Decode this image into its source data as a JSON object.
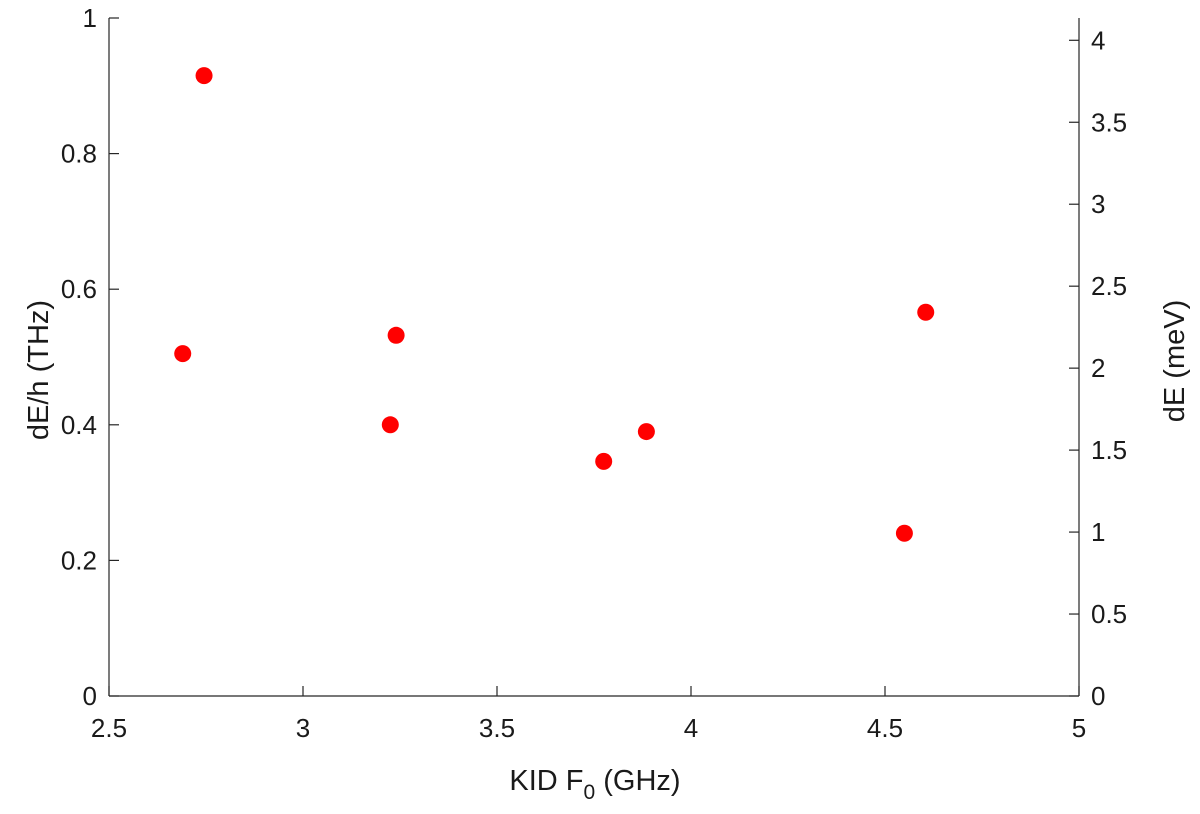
{
  "chart_data": {
    "type": "scatter",
    "title": "",
    "xlabel": "KID F",
    "xlabel_subscript": "0",
    "xlabel_unit": " (GHz)",
    "ylabel": "dE/h  (THz)",
    "y2label": "dE  (meV)",
    "xlim": [
      2.5,
      5
    ],
    "ylim": [
      0,
      1
    ],
    "y2lim": [
      0,
      4.136
    ],
    "xticks": [
      2.5,
      3,
      3.5,
      4,
      4.5,
      5
    ],
    "xtick_labels": [
      "2.5",
      "3",
      "3.5",
      "4",
      "4.5",
      "5"
    ],
    "yticks": [
      0,
      0.2,
      0.4,
      0.6,
      0.8,
      1
    ],
    "ytick_labels": [
      "0",
      "0.2",
      "0.4",
      "0.6",
      "0.8",
      "1"
    ],
    "y2ticks": [
      0,
      0.5,
      1,
      1.5,
      2,
      2.5,
      3,
      3.5,
      4
    ],
    "y2tick_labels": [
      "0",
      "0.5",
      "1",
      "1.5",
      "2",
      "2.5",
      "3",
      "3.5",
      "4"
    ],
    "grid": false,
    "marker_color": "#ff0000",
    "series": [
      {
        "points": [
          {
            "x": 2.69,
            "y": 0.505
          },
          {
            "x": 2.745,
            "y": 0.915
          },
          {
            "x": 3.225,
            "y": 0.4
          },
          {
            "x": 3.24,
            "y": 0.532
          },
          {
            "x": 3.775,
            "y": 0.346
          },
          {
            "x": 3.885,
            "y": 0.39
          },
          {
            "x": 4.55,
            "y": 0.24
          },
          {
            "x": 4.605,
            "y": 0.566
          }
        ]
      }
    ]
  }
}
